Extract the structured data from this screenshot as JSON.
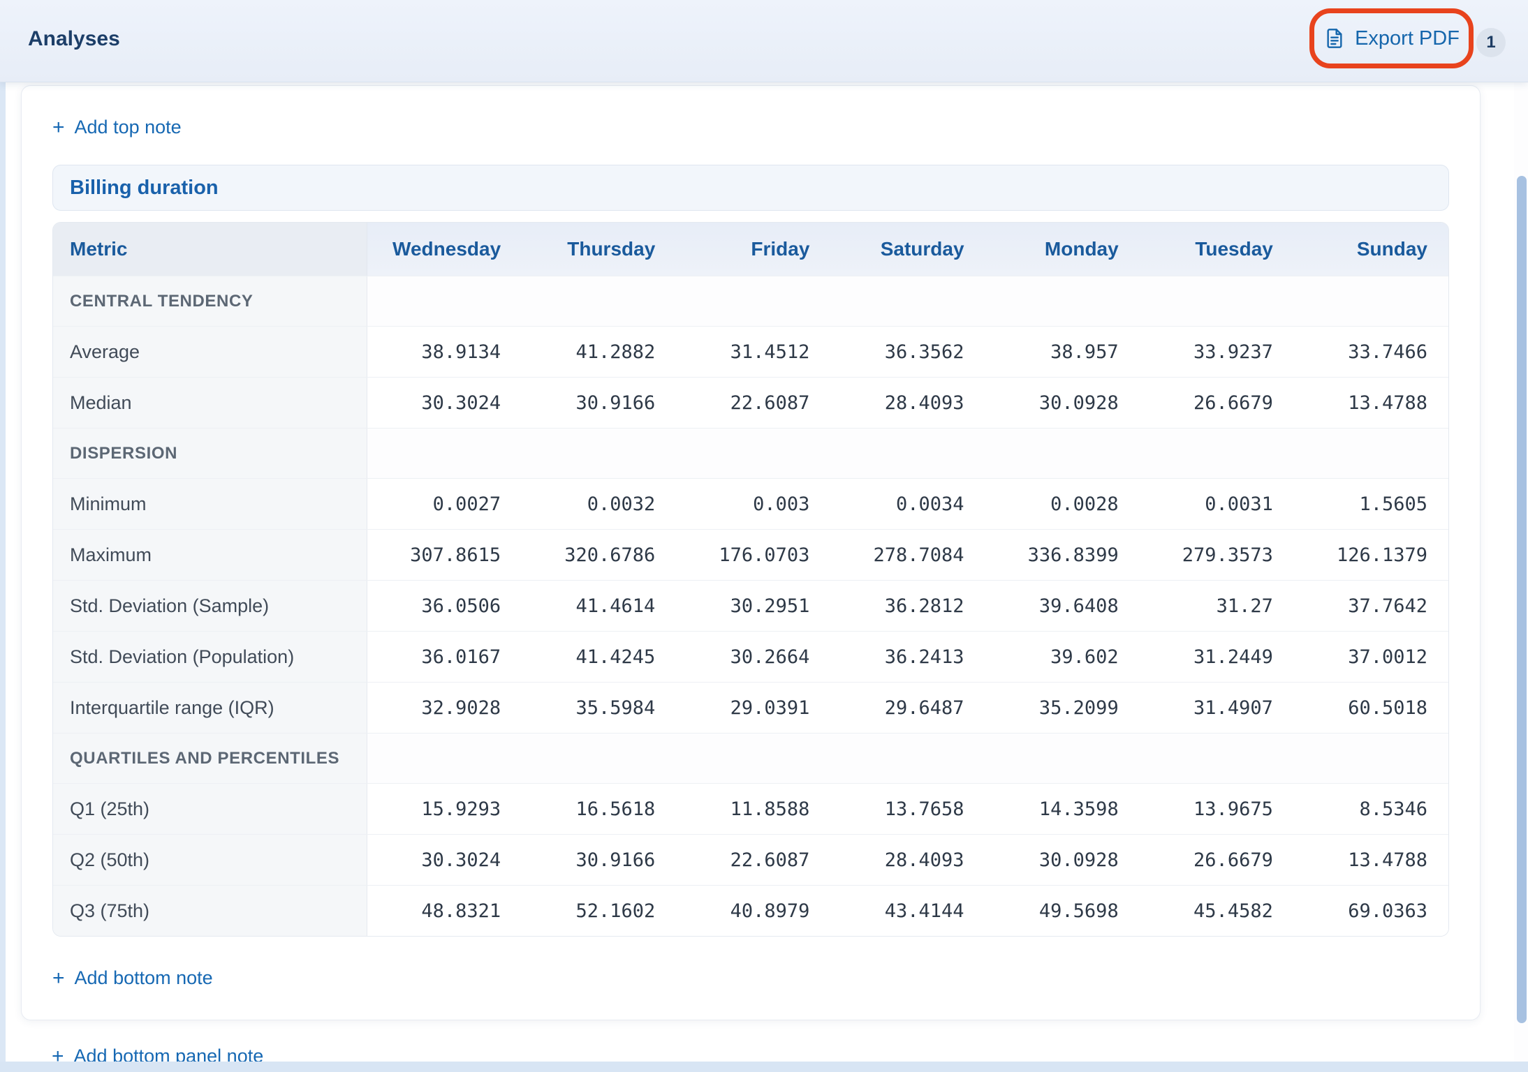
{
  "header": {
    "title": "Analyses",
    "export_button_label": "Export PDF",
    "badge_count": "1"
  },
  "annotation": {
    "type": "highlight-rounded-rect",
    "color": "#e8431d",
    "target": "export-pdf-button"
  },
  "notes": {
    "plus": "+",
    "add_top": "Add top note",
    "add_bottom": "Add bottom note",
    "add_bottom_panel": "Add bottom panel note"
  },
  "panel": {
    "title": "Billing duration"
  },
  "table": {
    "metric_header": "Metric",
    "day_headers": [
      "Wednesday",
      "Thursday",
      "Friday",
      "Saturday",
      "Monday",
      "Tuesday",
      "Sunday"
    ],
    "sections": [
      {
        "label": "CENTRAL TENDENCY",
        "rows": [
          {
            "metric": "Average",
            "values": [
              "38.9134",
              "41.2882",
              "31.4512",
              "36.3562",
              "38.957",
              "33.9237",
              "33.7466"
            ]
          },
          {
            "metric": "Median",
            "values": [
              "30.3024",
              "30.9166",
              "22.6087",
              "28.4093",
              "30.0928",
              "26.6679",
              "13.4788"
            ]
          }
        ]
      },
      {
        "label": "DISPERSION",
        "rows": [
          {
            "metric": "Minimum",
            "values": [
              "0.0027",
              "0.0032",
              "0.003",
              "0.0034",
              "0.0028",
              "0.0031",
              "1.5605"
            ]
          },
          {
            "metric": "Maximum",
            "values": [
              "307.8615",
              "320.6786",
              "176.0703",
              "278.7084",
              "336.8399",
              "279.3573",
              "126.1379"
            ]
          },
          {
            "metric": "Std. Deviation (Sample)",
            "values": [
              "36.0506",
              "41.4614",
              "30.2951",
              "36.2812",
              "39.6408",
              "31.27",
              "37.7642"
            ]
          },
          {
            "metric": "Std. Deviation (Population)",
            "values": [
              "36.0167",
              "41.4245",
              "30.2664",
              "36.2413",
              "39.602",
              "31.2449",
              "37.0012"
            ]
          },
          {
            "metric": "Interquartile range (IQR)",
            "values": [
              "32.9028",
              "35.5984",
              "29.0391",
              "29.6487",
              "35.2099",
              "31.4907",
              "60.5018"
            ]
          }
        ]
      },
      {
        "label": "QUARTILES AND PERCENTILES",
        "rows": [
          {
            "metric": "Q1 (25th)",
            "values": [
              "15.9293",
              "16.5618",
              "11.8588",
              "13.7658",
              "14.3598",
              "13.9675",
              "8.5346"
            ]
          },
          {
            "metric": "Q2 (50th)",
            "values": [
              "30.3024",
              "30.9166",
              "22.6087",
              "28.4093",
              "30.0928",
              "26.6679",
              "13.4788"
            ]
          },
          {
            "metric": "Q3 (75th)",
            "values": [
              "48.8321",
              "52.1602",
              "40.8979",
              "43.4144",
              "49.5698",
              "45.4582",
              "69.0363"
            ]
          }
        ]
      }
    ]
  },
  "colors": {
    "header_bar_bg": "#e9eff8",
    "accent_blue": "#1668b3",
    "title_navy": "#1c3e68",
    "annotation_red": "#e8431d",
    "table_header_text": "#1a5a9c",
    "section_label_gray": "#5c6774",
    "scrollbar_thumb": "#a7c1e1"
  }
}
